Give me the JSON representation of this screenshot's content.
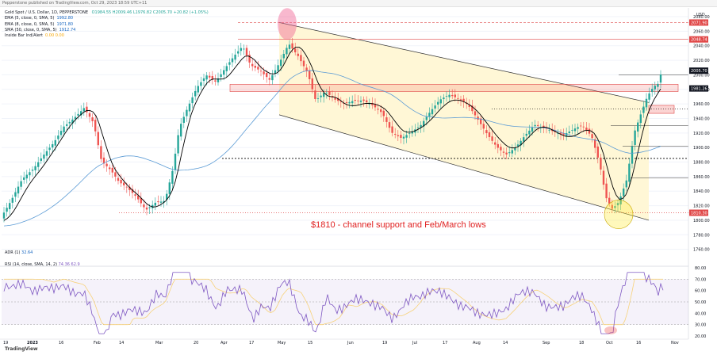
{
  "header": {
    "credit": "Pepperstone published on TradingView.com, Oct 29, 2023 18:59 UTC+11",
    "instrument": "Gold Spot / U.S. Dollar, 1D, PEPPERSTONE",
    "ohlc": "O1984.55 H2009.46 L1976.82 C2005.70 +20.82 (+1.05%)",
    "ema5": "EMA (5, close, 0, SMA, 5)",
    "ema5_value": "1992.80",
    "ema8": "EMA (8, close, 0, SMA, 5)",
    "ema8_value": "1971.80",
    "sma50": "SMA (50, close, 0, SMA, 5)",
    "sma50_value": "1912.74",
    "inside_bar": "Inside Bar Ind/Alert",
    "inside_bar_values": "0.00 0.00"
  },
  "footer": {
    "adr": "ADR (1)",
    "adr_value": "32.64",
    "rsi": "RSI (14, close, SMA, 14, 2)",
    "rsi_values": "74.36 62.9",
    "watermark": "TradingView"
  },
  "colors": {
    "up": "#26a69a",
    "down": "#ef5350",
    "channel_fill": "#fff7d6",
    "ema_black": "#000000",
    "sma_blue": "#5b9bd5",
    "rsi_line": "#7e57c2",
    "rsi_signal": "#f7d27a",
    "level_red": "#e04848",
    "annotation": "#e02020"
  },
  "chart_data": {
    "type": "line",
    "title": "",
    "currency": "USD",
    "y_axis": {
      "ticks": [
        1760,
        1780,
        1800,
        1820,
        1840,
        1860,
        1880,
        1900,
        1920,
        1940,
        1960,
        1980,
        2000,
        2020,
        2040,
        2060,
        2080
      ],
      "ylim": [
        1752,
        2092
      ]
    },
    "x_axis": {
      "ticks": [
        "19",
        "2023",
        "16",
        "Feb",
        "14",
        "Mar",
        "20",
        "Apr",
        "17",
        "May",
        "15",
        "Jun",
        "19",
        "Jul",
        "17",
        "Aug",
        "14",
        "Sep",
        "18",
        "Oct",
        "16",
        "Nov"
      ]
    },
    "price_labels": [
      {
        "value": 2071.9,
        "label": "2071.90"
      },
      {
        "value": 2048.74,
        "label": "2048.74"
      },
      {
        "value": 2005.7,
        "label": "2005.70"
      },
      {
        "value": 1981.26,
        "label": "1981.26"
      },
      {
        "value": 1810.3,
        "label": "1810.30"
      }
    ],
    "annotation": "$1810 - channel support and Feb/March lows",
    "price_path": [
      [
        0,
        1798
      ],
      [
        14,
        1822
      ],
      [
        28,
        1852
      ],
      [
        42,
        1868
      ],
      [
        55,
        1890
      ],
      [
        68,
        1910
      ],
      [
        80,
        1933
      ],
      [
        93,
        1945
      ],
      [
        106,
        1958
      ],
      [
        118,
        1935
      ],
      [
        128,
        1880
      ],
      [
        140,
        1865
      ],
      [
        150,
        1848
      ],
      [
        160,
        1840
      ],
      [
        172,
        1828
      ],
      [
        184,
        1812
      ],
      [
        196,
        1825
      ],
      [
        208,
        1830
      ],
      [
        218,
        1875
      ],
      [
        226,
        1932
      ],
      [
        236,
        1958
      ],
      [
        248,
        1985
      ],
      [
        260,
        2000
      ],
      [
        272,
        1988
      ],
      [
        284,
        2005
      ],
      [
        296,
        2022
      ],
      [
        306,
        2035
      ],
      [
        316,
        2010
      ],
      [
        328,
        2005
      ],
      [
        340,
        1995
      ],
      [
        352,
        2020
      ],
      [
        364,
        2048
      ],
      [
        376,
        2030
      ],
      [
        388,
        2005
      ],
      [
        398,
        1965
      ],
      [
        410,
        1975
      ],
      [
        422,
        1962
      ],
      [
        434,
        1955
      ],
      [
        446,
        1960
      ],
      [
        458,
        1962
      ],
      [
        470,
        1958
      ],
      [
        482,
        1950
      ],
      [
        494,
        1925
      ],
      [
        506,
        1918
      ],
      [
        518,
        1925
      ],
      [
        530,
        1932
      ],
      [
        542,
        1948
      ],
      [
        554,
        1962
      ],
      [
        566,
        1968
      ],
      [
        578,
        1962
      ],
      [
        590,
        1955
      ],
      [
        602,
        1938
      ],
      [
        614,
        1920
      ],
      [
        626,
        1905
      ],
      [
        638,
        1895
      ],
      [
        650,
        1905
      ],
      [
        662,
        1920
      ],
      [
        674,
        1932
      ],
      [
        686,
        1925
      ],
      [
        698,
        1918
      ],
      [
        710,
        1912
      ],
      [
        722,
        1920
      ],
      [
        734,
        1928
      ],
      [
        746,
        1915
      ],
      [
        756,
        1880
      ],
      [
        764,
        1835
      ],
      [
        772,
        1820
      ],
      [
        780,
        1830
      ],
      [
        790,
        1860
      ],
      [
        800,
        1925
      ],
      [
        808,
        1948
      ],
      [
        816,
        1970
      ],
      [
        824,
        1982
      ],
      [
        830,
        1985
      ],
      [
        835,
        2005
      ]
    ]
  }
}
